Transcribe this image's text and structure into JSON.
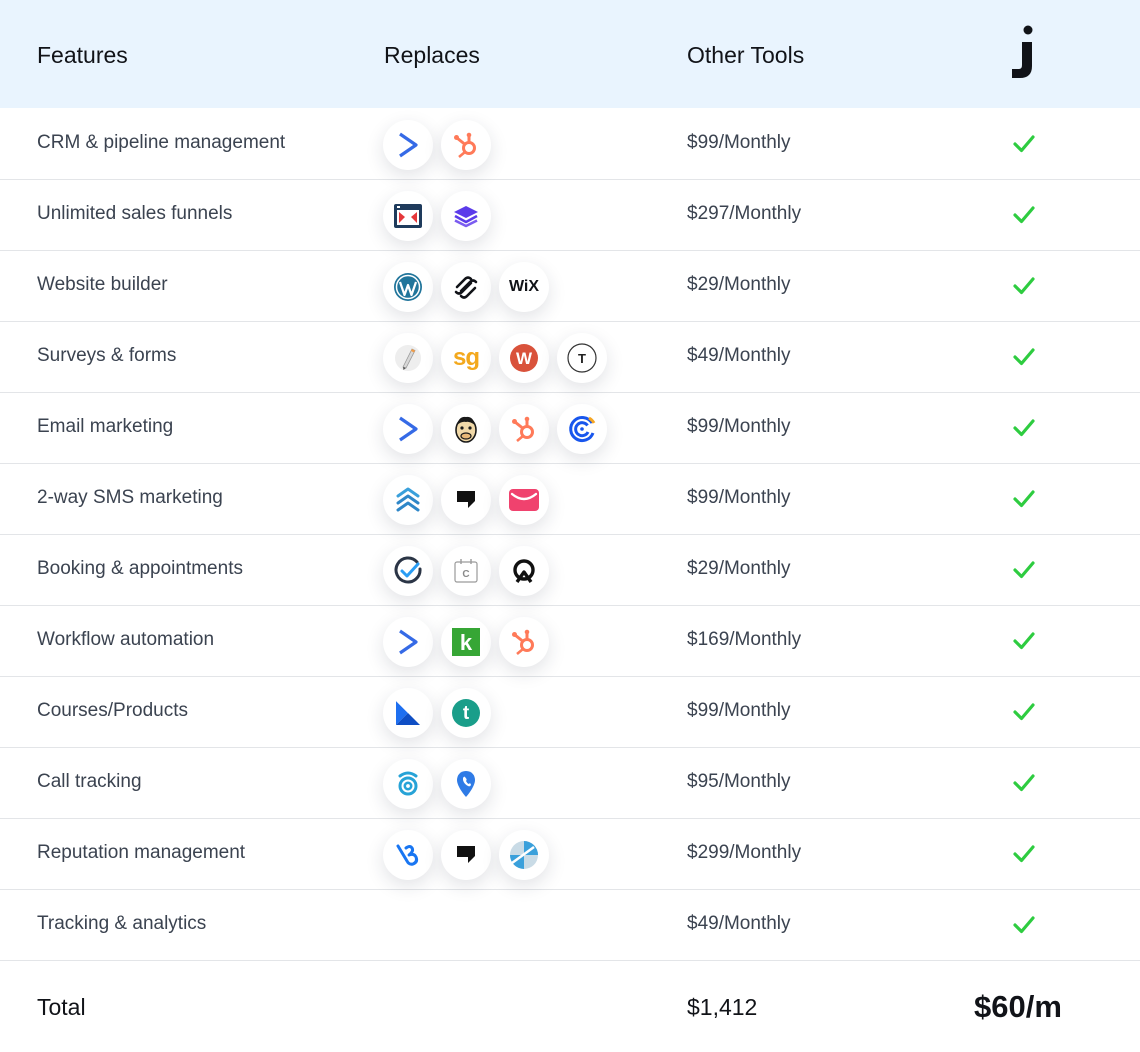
{
  "header": {
    "features": "Features",
    "replaces": "Replaces",
    "other_tools": "Other Tools",
    "brand_logo": "j"
  },
  "colors": {
    "header_bg": "#e9f4fe",
    "check": "#2ecc40",
    "divider": "#e3e5e8"
  },
  "rows": [
    {
      "feature": "CRM & pipeline management",
      "price": "$99/Monthly",
      "logos": [
        "activecampaign-icon",
        "hubspot-icon"
      ]
    },
    {
      "feature": "Unlimited sales funnels",
      "price": "$297/Monthly",
      "logos": [
        "clickfunnels-icon",
        "layers-icon"
      ]
    },
    {
      "feature": "Website builder",
      "price": "$29/Monthly",
      "logos": [
        "wordpress-icon",
        "squarespace-icon",
        "wix-icon"
      ],
      "logo_text": {
        "wix": "WiX"
      }
    },
    {
      "feature": "Surveys & forms",
      "price": "$49/Monthly",
      "logos": [
        "pencil-form-icon",
        "surveygizmo-icon",
        "wufoo-icon",
        "typeform-icon"
      ],
      "logo_text": {
        "sg": "sg",
        "w": "W",
        "t": "T"
      }
    },
    {
      "feature": "Email marketing",
      "price": "$99/Monthly",
      "logos": [
        "activecampaign-icon",
        "mailchimp-icon",
        "hubspot-icon",
        "constant-contact-icon"
      ]
    },
    {
      "feature": "2-way SMS marketing",
      "price": "$99/Monthly",
      "logos": [
        "chevrons-up-icon",
        "speech-bubble-icon",
        "envelope-icon"
      ]
    },
    {
      "feature": "Booking & appointments",
      "price": "$29/Monthly",
      "logos": [
        "acuity-check-icon",
        "calendly-icon",
        "q-icon"
      ],
      "logo_text": {
        "c": "C"
      }
    },
    {
      "feature": "Workflow automation",
      "price": "$169/Monthly",
      "logos": [
        "activecampaign-icon",
        "keap-icon",
        "hubspot-icon"
      ],
      "logo_text": {
        "k": "k"
      }
    },
    {
      "feature": "Courses/Products",
      "price": "$99/Monthly",
      "logos": [
        "kajabi-icon",
        "teachable-icon"
      ],
      "logo_text": {
        "t": "t"
      }
    },
    {
      "feature": "Call tracking",
      "price": "$95/Monthly",
      "logos": [
        "callrail-icon",
        "location-pin-icon"
      ]
    },
    {
      "feature": "Reputation management",
      "price": "$299/Monthly",
      "logos": [
        "birdeye-icon",
        "speech-bubble-icon",
        "yext-icon"
      ]
    },
    {
      "feature": "Tracking & analytics",
      "price": "$49/Monthly",
      "logos": []
    }
  ],
  "total": {
    "label": "Total",
    "other_tools_total": "$1,412",
    "ours": "$60/m"
  }
}
